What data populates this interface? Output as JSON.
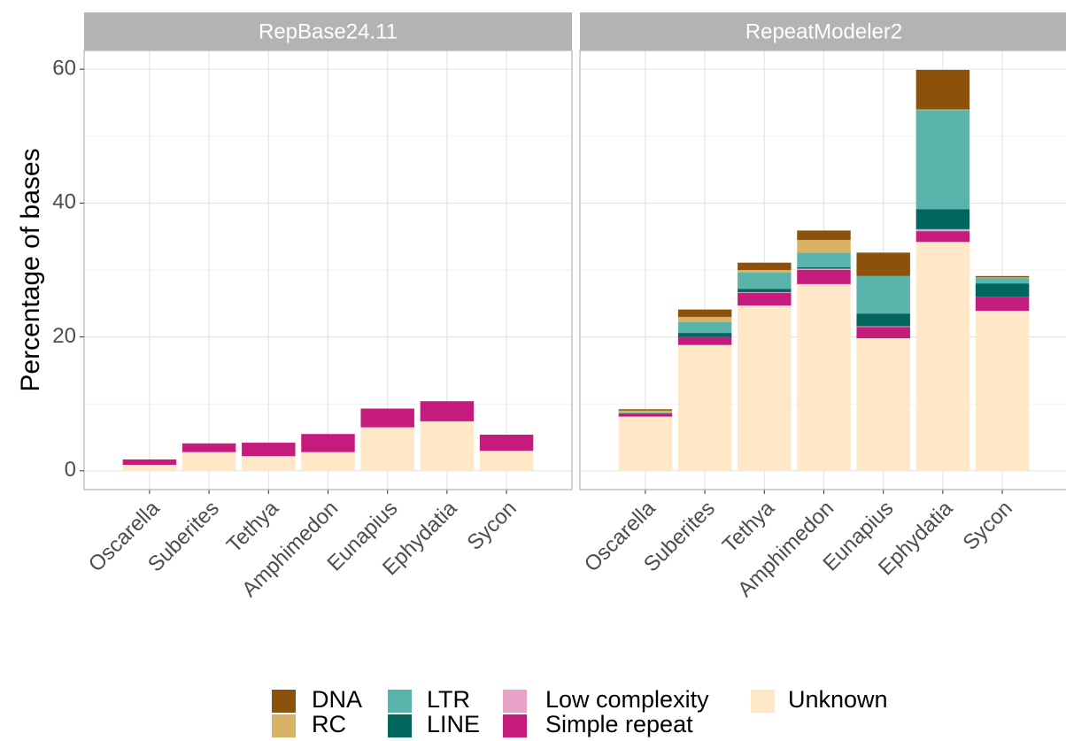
{
  "chart_data": {
    "type": "bar",
    "stacked": true,
    "ylabel": "Percentage of bases",
    "categories": [
      "Oscarella",
      "Suberites",
      "Tethya",
      "Amphimedon",
      "Eunapius",
      "Ephydatia",
      "Sycon"
    ],
    "ylim": [
      -2.8,
      62.8
    ],
    "yticks": [
      0,
      20,
      40,
      60
    ],
    "grid": true,
    "legend": "bottom",
    "facets": [
      {
        "title": "RepBase24.11",
        "series": [
          {
            "name": "DNA",
            "color": "#8c510a",
            "values": [
              0,
              0,
              0,
              0,
              0,
              0,
              0
            ]
          },
          {
            "name": "RC",
            "color": "#d8b365",
            "values": [
              0,
              0,
              0,
              0,
              0,
              0,
              0
            ]
          },
          {
            "name": "LTR",
            "color": "#5ab4ac",
            "values": [
              0,
              0,
              0,
              0,
              0,
              0,
              0
            ]
          },
          {
            "name": "LINE",
            "color": "#01665e",
            "values": [
              0,
              0,
              0,
              0,
              0,
              0,
              0
            ]
          },
          {
            "name": "Low complexity",
            "color": "#e9a3c9",
            "values": [
              0,
              0,
              0,
              0,
              0,
              0,
              0
            ]
          },
          {
            "name": "Simple repeat",
            "color": "#c51b7d",
            "values": [
              0.8,
              1.3,
              2.0,
              2.7,
              2.8,
              3.0,
              2.4
            ]
          },
          {
            "name": "Unknown",
            "color": "#fee8c8",
            "values": [
              0.9,
              2.8,
              2.2,
              2.8,
              6.5,
              7.4,
              3.0
            ]
          }
        ]
      },
      {
        "title": "RepeatModeler2",
        "series": [
          {
            "name": "DNA",
            "color": "#8c510a",
            "values": [
              0.2,
              1.1,
              1.1,
              1.4,
              3.5,
              5.9,
              0.2
            ]
          },
          {
            "name": "RC",
            "color": "#d8b365",
            "values": [
              0.3,
              0.8,
              0.4,
              1.9,
              0,
              0.1,
              0.1
            ]
          },
          {
            "name": "LTR",
            "color": "#5ab4ac",
            "values": [
              0.1,
              1.6,
              2.4,
              2.2,
              5.6,
              14.8,
              0.8
            ]
          },
          {
            "name": "LINE",
            "color": "#01665e",
            "values": [
              0,
              0.6,
              0.5,
              0.2,
              1.9,
              3.0,
              2.0
            ]
          },
          {
            "name": "Low complexity",
            "color": "#e9a3c9",
            "values": [
              0,
              0,
              0.1,
              0.2,
              0.1,
              0.3,
              0
            ]
          },
          {
            "name": "Simple repeat",
            "color": "#c51b7d",
            "values": [
              0.5,
              1.2,
              1.9,
              2.1,
              1.7,
              1.6,
              2.1
            ]
          },
          {
            "name": "Unknown",
            "color": "#fee8c8",
            "values": [
              8.1,
              18.8,
              24.7,
              27.9,
              19.8,
              34.2,
              23.9
            ]
          }
        ]
      }
    ]
  }
}
